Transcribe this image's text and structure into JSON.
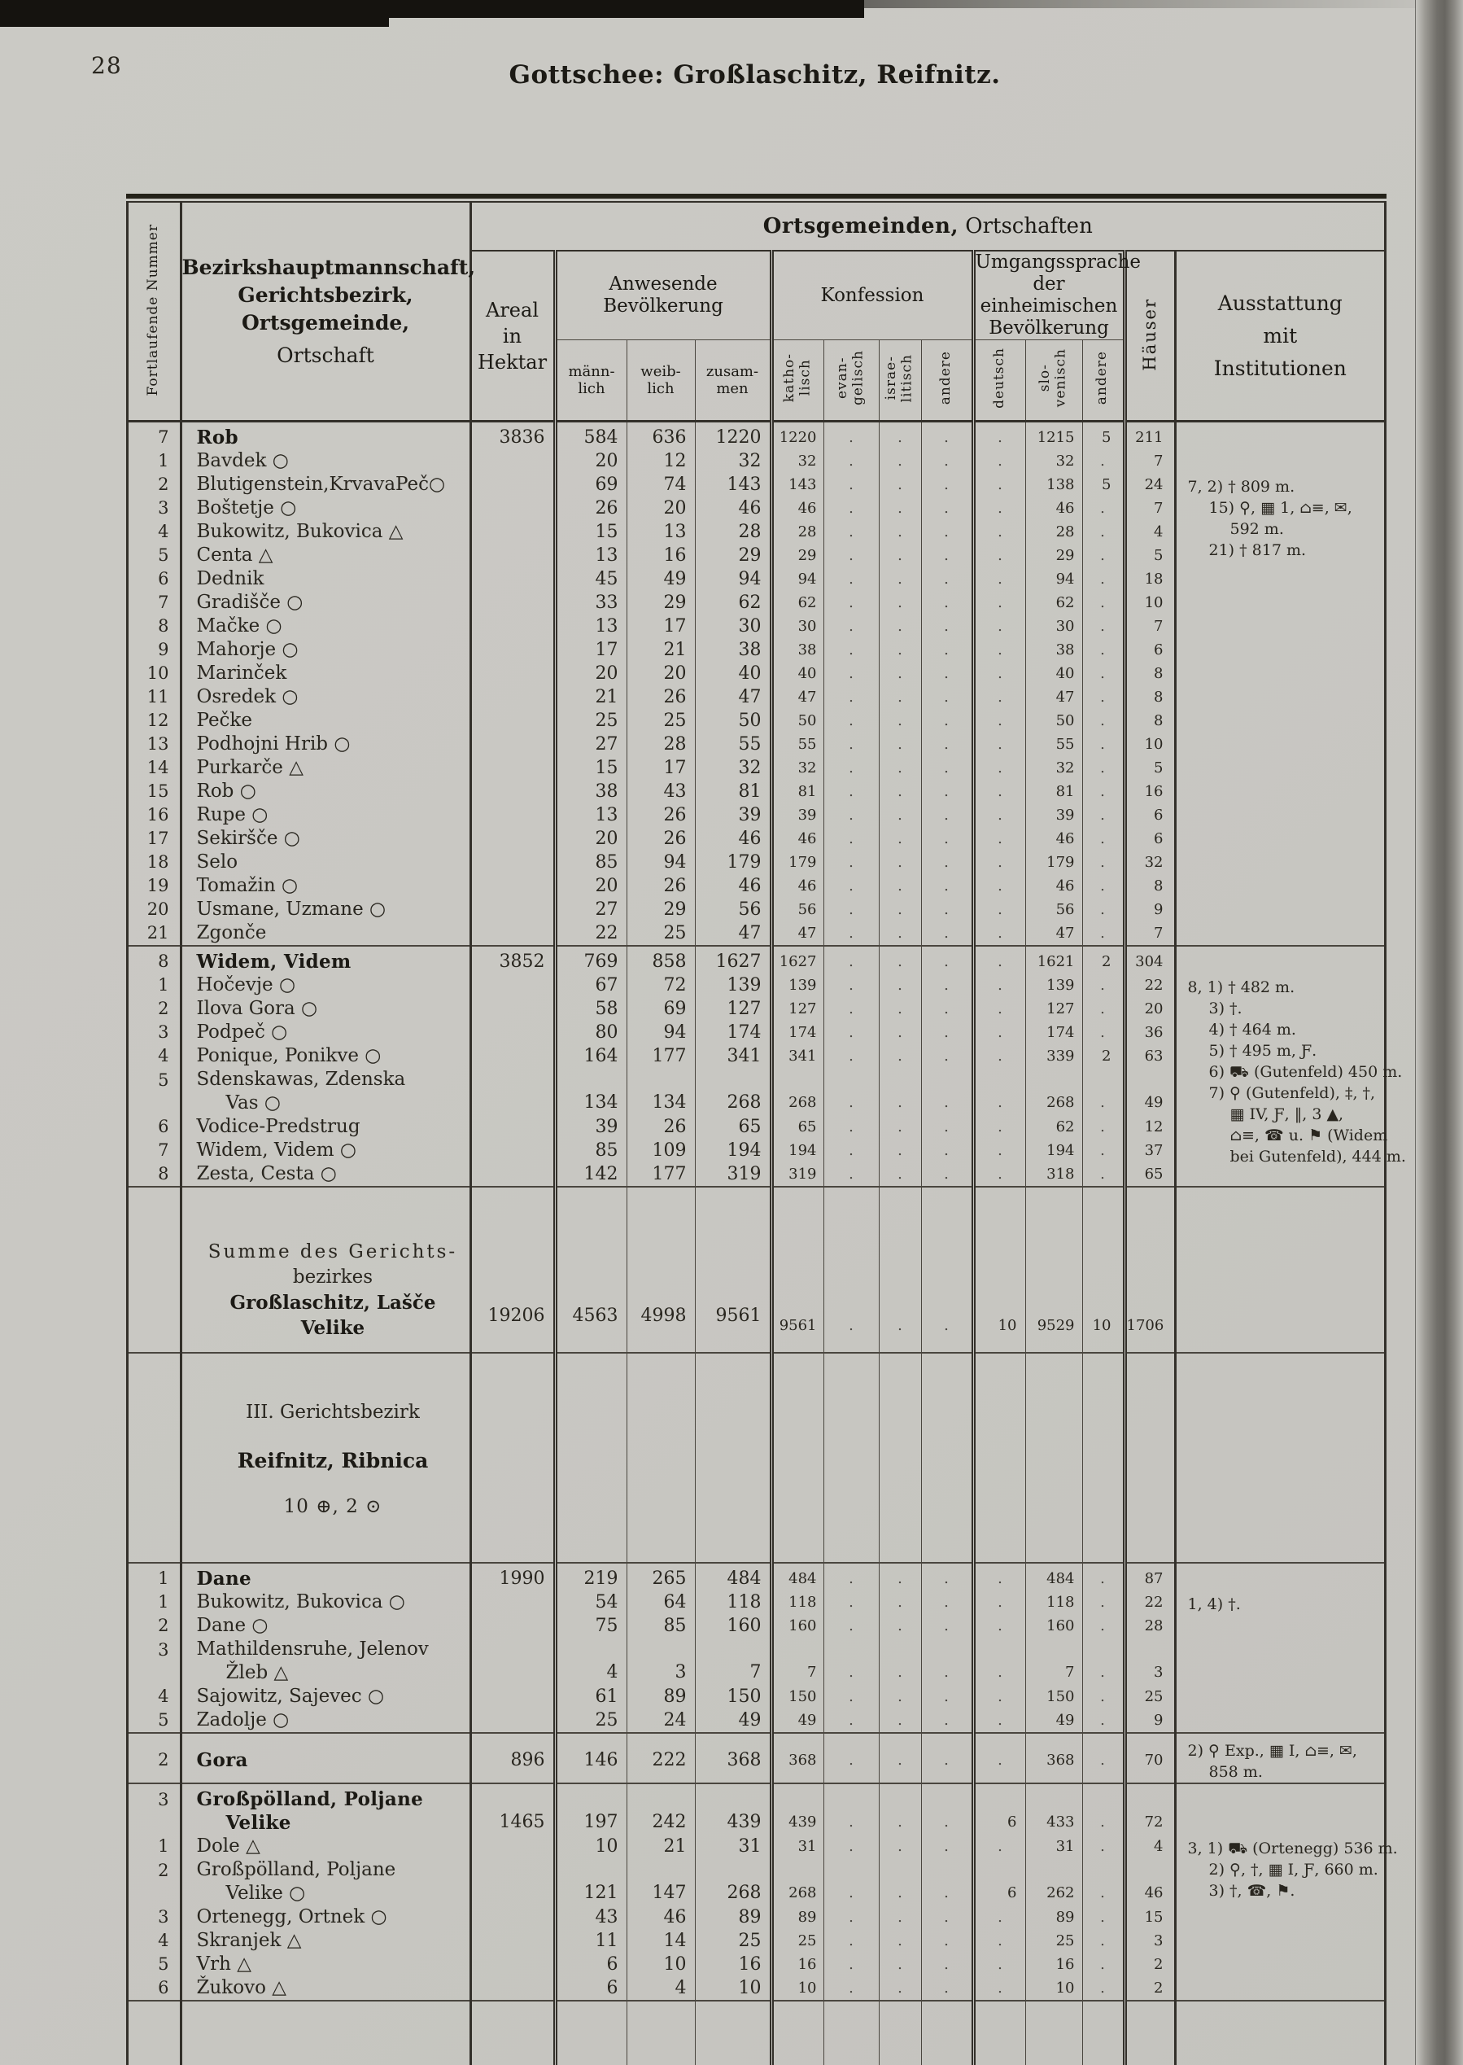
{
  "page": {
    "number": "28",
    "title_bold": "Gottschee:",
    "title_rest": " Großlaschitz, Reifnitz.",
    "paper_color": "#c9c8c3",
    "ink_color": "#29261f"
  },
  "table": {
    "headers": {
      "nr_vertical": "Fortlaufende Nummer",
      "place_l1": "Bezirkshauptmannschaft,",
      "place_l2": "Gerichtsbezirk,",
      "place_l3": "Ortsgemeinde,",
      "place_l4": "Ortschaft",
      "span_bold": "Ortsgemeinden,",
      "span_rest": " Ortschaften",
      "areal": "Areal\nin\nHektar",
      "bev_group": "Anwesende\nBevölkerung",
      "m": "männ-\nlich",
      "w": "weib-\nlich",
      "z": "zusam-\nmen",
      "konf_group": "Konfession",
      "kath": "katho-\nlisch",
      "ev": "evan-\ngelisch",
      "isr": "israe-\nlitisch",
      "an1": "andere",
      "sprache_group": "Umgangssprache\nder einheimischen\nBevölkerung",
      "de": "deutsch",
      "slo": "slo-\nvenisch",
      "an2": "andere",
      "haeuser_vertical": "Häuser",
      "ausstattung": "Ausstattung\nmit\nInstitutionen"
    },
    "groups": [
      {
        "type": "places",
        "note_row": 2,
        "notes": [
          {
            "t": "7, 2) † 809 m.",
            "i": 0
          },
          {
            "t": "15) ⚲, ▦ 1, ⌂≡, ✉,",
            "i": 1
          },
          {
            "t": "592 m.",
            "i": 2
          },
          {
            "t": "21) † 817 m.",
            "i": 1
          }
        ],
        "rows": [
          {
            "nr": "7",
            "name": "Rob",
            "bold": true,
            "areal": "3836",
            "m": "584",
            "w": "636",
            "z": "1220",
            "kath": "1220",
            "ev": ".",
            "isr": ".",
            "an1": ".",
            "de": ".",
            "slo": "1215",
            "an2": "5",
            "h": "211"
          },
          {
            "nr": "1",
            "name": "Bavdek ○",
            "m": "20",
            "w": "12",
            "z": "32",
            "kath": "32",
            "ev": ".",
            "isr": ".",
            "an1": ".",
            "de": ".",
            "slo": "32",
            "an2": ".",
            "h": "7"
          },
          {
            "nr": "2",
            "name": "Blutigenstein,KrvavaPeč○",
            "m": "69",
            "w": "74",
            "z": "143",
            "kath": "143",
            "ev": ".",
            "isr": ".",
            "an1": ".",
            "de": ".",
            "slo": "138",
            "an2": "5",
            "h": "24"
          },
          {
            "nr": "3",
            "name": "Boštetje ○",
            "m": "26",
            "w": "20",
            "z": "46",
            "kath": "46",
            "ev": ".",
            "isr": ".",
            "an1": ".",
            "de": ".",
            "slo": "46",
            "an2": ".",
            "h": "7"
          },
          {
            "nr": "4",
            "name": "Bukowitz, Bukovica △",
            "m": "15",
            "w": "13",
            "z": "28",
            "kath": "28",
            "ev": ".",
            "isr": ".",
            "an1": ".",
            "de": ".",
            "slo": "28",
            "an2": ".",
            "h": "4"
          },
          {
            "nr": "5",
            "name": "Centa △",
            "m": "13",
            "w": "16",
            "z": "29",
            "kath": "29",
            "ev": ".",
            "isr": ".",
            "an1": ".",
            "de": ".",
            "slo": "29",
            "an2": ".",
            "h": "5"
          },
          {
            "nr": "6",
            "name": "Dednik",
            "m": "45",
            "w": "49",
            "z": "94",
            "kath": "94",
            "ev": ".",
            "isr": ".",
            "an1": ".",
            "de": ".",
            "slo": "94",
            "an2": ".",
            "h": "18"
          },
          {
            "nr": "7",
            "name": "Gradišče ○",
            "m": "33",
            "w": "29",
            "z": "62",
            "kath": "62",
            "ev": ".",
            "isr": ".",
            "an1": ".",
            "de": ".",
            "slo": "62",
            "an2": ".",
            "h": "10"
          },
          {
            "nr": "8",
            "name": "Mačke ○",
            "m": "13",
            "w": "17",
            "z": "30",
            "kath": "30",
            "ev": ".",
            "isr": ".",
            "an1": ".",
            "de": ".",
            "slo": "30",
            "an2": ".",
            "h": "7"
          },
          {
            "nr": "9",
            "name": "Mahorje ○",
            "m": "17",
            "w": "21",
            "z": "38",
            "kath": "38",
            "ev": ".",
            "isr": ".",
            "an1": ".",
            "de": ".",
            "slo": "38",
            "an2": ".",
            "h": "6"
          },
          {
            "nr": "10",
            "name": "Marinček",
            "m": "20",
            "w": "20",
            "z": "40",
            "kath": "40",
            "ev": ".",
            "isr": ".",
            "an1": ".",
            "de": ".",
            "slo": "40",
            "an2": ".",
            "h": "8"
          },
          {
            "nr": "11",
            "name": "Osredek ○",
            "m": "21",
            "w": "26",
            "z": "47",
            "kath": "47",
            "ev": ".",
            "isr": ".",
            "an1": ".",
            "de": ".",
            "slo": "47",
            "an2": ".",
            "h": "8"
          },
          {
            "nr": "12",
            "name": "Pečke",
            "m": "25",
            "w": "25",
            "z": "50",
            "kath": "50",
            "ev": ".",
            "isr": ".",
            "an1": ".",
            "de": ".",
            "slo": "50",
            "an2": ".",
            "h": "8"
          },
          {
            "nr": "13",
            "name": "Podhojni Hrib ○",
            "m": "27",
            "w": "28",
            "z": "55",
            "kath": "55",
            "ev": ".",
            "isr": ".",
            "an1": ".",
            "de": ".",
            "slo": "55",
            "an2": ".",
            "h": "10"
          },
          {
            "nr": "14",
            "name": "Purkarče △",
            "m": "15",
            "w": "17",
            "z": "32",
            "kath": "32",
            "ev": ".",
            "isr": ".",
            "an1": ".",
            "de": ".",
            "slo": "32",
            "an2": ".",
            "h": "5"
          },
          {
            "nr": "15",
            "name": "Rob ○",
            "m": "38",
            "w": "43",
            "z": "81",
            "kath": "81",
            "ev": ".",
            "isr": ".",
            "an1": ".",
            "de": ".",
            "slo": "81",
            "an2": ".",
            "h": "16"
          },
          {
            "nr": "16",
            "name": "Rupe ○",
            "m": "13",
            "w": "26",
            "z": "39",
            "kath": "39",
            "ev": ".",
            "isr": ".",
            "an1": ".",
            "de": ".",
            "slo": "39",
            "an2": ".",
            "h": "6"
          },
          {
            "nr": "17",
            "name": "Sekiršče ○",
            "m": "20",
            "w": "26",
            "z": "46",
            "kath": "46",
            "ev": ".",
            "isr": ".",
            "an1": ".",
            "de": ".",
            "slo": "46",
            "an2": ".",
            "h": "6"
          },
          {
            "nr": "18",
            "name": "Selo",
            "m": "85",
            "w": "94",
            "z": "179",
            "kath": "179",
            "ev": ".",
            "isr": ".",
            "an1": ".",
            "de": ".",
            "slo": "179",
            "an2": ".",
            "h": "32"
          },
          {
            "nr": "19",
            "name": "Tomažin ○",
            "m": "20",
            "w": "26",
            "z": "46",
            "kath": "46",
            "ev": ".",
            "isr": ".",
            "an1": ".",
            "de": ".",
            "slo": "46",
            "an2": ".",
            "h": "8"
          },
          {
            "nr": "20",
            "name": "Usmane, Uzmane ○",
            "m": "27",
            "w": "29",
            "z": "56",
            "kath": "56",
            "ev": ".",
            "isr": ".",
            "an1": ".",
            "de": ".",
            "slo": "56",
            "an2": ".",
            "h": "9"
          },
          {
            "nr": "21",
            "name": "Zgonče",
            "m": "22",
            "w": "25",
            "z": "47",
            "kath": "47",
            "ev": ".",
            "isr": ".",
            "an1": ".",
            "de": ".",
            "slo": "47",
            "an2": ".",
            "h": "7"
          }
        ]
      },
      {
        "type": "places",
        "note_row": 1,
        "notes": [
          {
            "t": "8, 1) † 482 m.",
            "i": 0
          },
          {
            "t": "3) †.",
            "i": 1
          },
          {
            "t": "4) † 464 m.",
            "i": 1
          },
          {
            "t": "5) † 495 m, Ƒ.",
            "i": 1
          },
          {
            "t": "6) ⛟ (Gutenfeld) 450 m.",
            "i": 1
          },
          {
            "t": "7) ⚲ (Gutenfeld), ‡, †,",
            "i": 1
          },
          {
            "t": "▦ IV, Ƒ, ‖, 3 ▲,",
            "i": 2
          },
          {
            "t": "⌂≡, ☎ u. ⚑ (Widem",
            "i": 2
          },
          {
            "t": "bei Gutenfeld), 444 m.",
            "i": 2
          }
        ],
        "rows": [
          {
            "nr": "8",
            "name": "Widem, Videm",
            "bold": true,
            "areal": "3852",
            "m": "769",
            "w": "858",
            "z": "1627",
            "kath": "1627",
            "ev": ".",
            "isr": ".",
            "an1": ".",
            "de": ".",
            "slo": "1621",
            "an2": "2",
            "h": "304"
          },
          {
            "nr": "1",
            "name": "Hočevje ○",
            "m": "67",
            "w": "72",
            "z": "139",
            "kath": "139",
            "ev": ".",
            "isr": ".",
            "an1": ".",
            "de": ".",
            "slo": "139",
            "an2": ".",
            "h": "22"
          },
          {
            "nr": "2",
            "name": "Ilova Gora ○",
            "m": "58",
            "w": "69",
            "z": "127",
            "kath": "127",
            "ev": ".",
            "isr": ".",
            "an1": ".",
            "de": ".",
            "slo": "127",
            "an2": ".",
            "h": "20"
          },
          {
            "nr": "3",
            "name": "Podpeč ○",
            "m": "80",
            "w": "94",
            "z": "174",
            "kath": "174",
            "ev": ".",
            "isr": ".",
            "an1": ".",
            "de": ".",
            "slo": "174",
            "an2": ".",
            "h": "36"
          },
          {
            "nr": "4",
            "name": "Ponique, Ponikve ○",
            "m": "164",
            "w": "177",
            "z": "341",
            "kath": "341",
            "ev": ".",
            "isr": ".",
            "an1": ".",
            "de": ".",
            "slo": "339",
            "an2": "2",
            "h": "63"
          },
          {
            "nr": "5",
            "name": "Sdenskawas,  Zdenska",
            "name2": "Vas ○",
            "tall": true,
            "m": "134",
            "w": "134",
            "z": "268",
            "kath": "268",
            "ev": ".",
            "isr": ".",
            "an1": ".",
            "de": ".",
            "slo": "268",
            "an2": ".",
            "h": "49"
          },
          {
            "nr": "6",
            "name": "Vodice-Predstrug",
            "m": "39",
            "w": "26",
            "z": "65",
            "kath": "65",
            "ev": ".",
            "isr": ".",
            "an1": ".",
            "de": ".",
            "slo": "62",
            "an2": ".",
            "h": "12"
          },
          {
            "nr": "7",
            "name": "Widem, Videm ○",
            "m": "85",
            "w": "109",
            "z": "194",
            "kath": "194",
            "ev": ".",
            "isr": ".",
            "an1": ".",
            "de": ".",
            "slo": "194",
            "an2": ".",
            "h": "37"
          },
          {
            "nr": "8",
            "name": "Zesta, Cesta ○",
            "m": "142",
            "w": "177",
            "z": "319",
            "kath": "319",
            "ev": ".",
            "isr": ".",
            "an1": ".",
            "de": ".",
            "slo": "318",
            "an2": ".",
            "h": "65"
          }
        ]
      },
      {
        "type": "summe",
        "label_l1": "Summe des Gerichts-",
        "label_l2": "bezirkes",
        "label_l3": "Großlaschitz, Lašče",
        "label_l4": "Velike",
        "areal": "19206",
        "m": "4563",
        "w": "4998",
        "z": "9561",
        "kath": "9561",
        "ev": ".",
        "isr": ".",
        "an1": ".",
        "de": "10",
        "slo": "9529",
        "an2": "10",
        "h": "1706"
      },
      {
        "type": "section",
        "line1": "III. Gerichtsbezirk",
        "line2": "Reifnitz, Ribnica",
        "line3": "10 ⊕, 2 ⊙"
      },
      {
        "type": "places",
        "note_row": 1,
        "notes": [
          {
            "t": "1, 4) †.",
            "i": 0
          }
        ],
        "rows": [
          {
            "nr": "1",
            "name": "Dane",
            "bold": true,
            "areal": "1990",
            "m": "219",
            "w": "265",
            "z": "484",
            "kath": "484",
            "ev": ".",
            "isr": ".",
            "an1": ".",
            "de": ".",
            "slo": "484",
            "an2": ".",
            "h": "87"
          },
          {
            "nr": "1",
            "name": "Bukowitz, Bukovica ○",
            "m": "54",
            "w": "64",
            "z": "118",
            "kath": "118",
            "ev": ".",
            "isr": ".",
            "an1": ".",
            "de": ".",
            "slo": "118",
            "an2": ".",
            "h": "22"
          },
          {
            "nr": "2",
            "name": "Dane ○",
            "m": "75",
            "w": "85",
            "z": "160",
            "kath": "160",
            "ev": ".",
            "isr": ".",
            "an1": ".",
            "de": ".",
            "slo": "160",
            "an2": ".",
            "h": "28"
          },
          {
            "nr": "3",
            "name": "Mathildensruhe, Jelenov",
            "name2": "Žleb △",
            "tall": true,
            "m": "4",
            "w": "3",
            "z": "7",
            "kath": "7",
            "ev": ".",
            "isr": ".",
            "an1": ".",
            "de": ".",
            "slo": "7",
            "an2": ".",
            "h": "3"
          },
          {
            "nr": "4",
            "name": "Sajowitz, Sajevec ○",
            "m": "61",
            "w": "89",
            "z": "150",
            "kath": "150",
            "ev": ".",
            "isr": ".",
            "an1": ".",
            "de": ".",
            "slo": "150",
            "an2": ".",
            "h": "25"
          },
          {
            "nr": "5",
            "name": "Zadolje ○",
            "m": "25",
            "w": "24",
            "z": "49",
            "kath": "49",
            "ev": ".",
            "isr": ".",
            "an1": ".",
            "de": ".",
            "slo": "49",
            "an2": ".",
            "h": "9"
          }
        ]
      },
      {
        "type": "places",
        "note_row": 0,
        "notes": [
          {
            "t": "2) ⚲ Exp., ▦ I, ⌂≡, ✉,",
            "i": 0
          },
          {
            "t": "858 m.",
            "i": 1
          }
        ],
        "rows": [
          {
            "nr": "2",
            "name": "Gora",
            "bold": true,
            "areal": "896",
            "m": "146",
            "w": "222",
            "z": "368",
            "kath": "368",
            "ev": ".",
            "isr": ".",
            "an1": ".",
            "de": ".",
            "slo": "368",
            "an2": ".",
            "h": "70"
          }
        ]
      },
      {
        "type": "places",
        "note_row": 1,
        "notes": [
          {
            "t": "3, 1) ⛟ (Ortenegg) 536 m.",
            "i": 0
          },
          {
            "t": "2) ⚲, †, ▦ I, Ƒ, 660 m.",
            "i": 1
          },
          {
            "t": "3) †, ☎, ⚑.",
            "i": 1
          }
        ],
        "rows": [
          {
            "nr": "3",
            "name": "Großpölland,  Poljane",
            "name2": "Velike",
            "bold": true,
            "tall": true,
            "areal": "1465",
            "m": "197",
            "w": "242",
            "z": "439",
            "kath": "439",
            "ev": ".",
            "isr": ".",
            "an1": ".",
            "de": "6",
            "slo": "433",
            "an2": ".",
            "h": "72"
          },
          {
            "nr": "1",
            "name": "Dole △",
            "m": "10",
            "w": "21",
            "z": "31",
            "kath": "31",
            "ev": ".",
            "isr": ".",
            "an1": ".",
            "de": ".",
            "slo": "31",
            "an2": ".",
            "h": "4"
          },
          {
            "nr": "2",
            "name": "Großpölland,  Poljane",
            "name2": "Velike ○",
            "tall": true,
            "m": "121",
            "w": "147",
            "z": "268",
            "kath": "268",
            "ev": ".",
            "isr": ".",
            "an1": ".",
            "de": "6",
            "slo": "262",
            "an2": ".",
            "h": "46"
          },
          {
            "nr": "3",
            "name": "Ortenegg, Ortnek ○",
            "m": "43",
            "w": "46",
            "z": "89",
            "kath": "89",
            "ev": ".",
            "isr": ".",
            "an1": ".",
            "de": ".",
            "slo": "89",
            "an2": ".",
            "h": "15"
          },
          {
            "nr": "4",
            "name": "Skranjek △",
            "m": "11",
            "w": "14",
            "z": "25",
            "kath": "25",
            "ev": ".",
            "isr": ".",
            "an1": ".",
            "de": ".",
            "slo": "25",
            "an2": ".",
            "h": "3"
          },
          {
            "nr": "5",
            "name": "Vrh △",
            "m": "6",
            "w": "10",
            "z": "16",
            "kath": "16",
            "ev": ".",
            "isr": ".",
            "an1": ".",
            "de": ".",
            "slo": "16",
            "an2": ".",
            "h": "2"
          },
          {
            "nr": "6",
            "name": "Žukovo △",
            "m": "6",
            "w": "4",
            "z": "10",
            "kath": "10",
            "ev": ".",
            "isr": ".",
            "an1": ".",
            "de": ".",
            "slo": "10",
            "an2": ".",
            "h": "2"
          }
        ]
      }
    ]
  }
}
